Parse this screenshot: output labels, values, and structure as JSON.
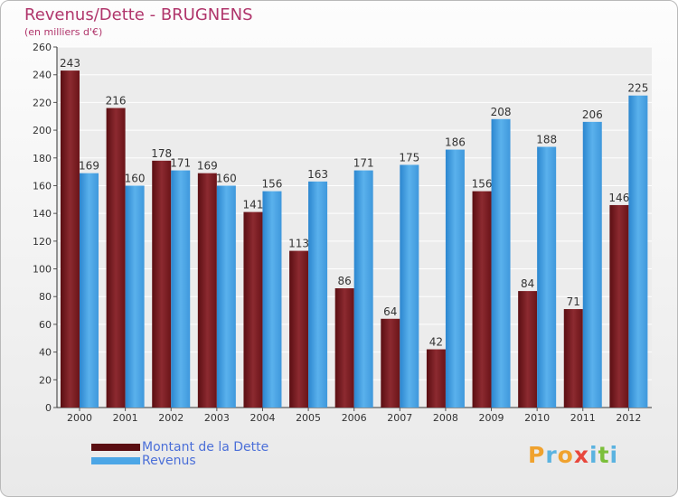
{
  "title": "Revenus/Dette - BRUGNENS",
  "subtitle": "(en milliers d'€)",
  "logo": {
    "text": "Proxiti",
    "colors": [
      "#f0a22e",
      "#5bb3e0",
      "#f0a22e",
      "#e8473c",
      "#5bb3e0",
      "#7bbf3a",
      "#5bb3e0"
    ]
  },
  "colors": {
    "debt": "#7a1e22",
    "revenue": "#4ca6e6",
    "title": "#b0356b",
    "legend": "#4b6fd8"
  },
  "chart_data": {
    "type": "bar",
    "categories": [
      "2000",
      "2001",
      "2002",
      "2003",
      "2004",
      "2005",
      "2006",
      "2007",
      "2008",
      "2009",
      "2010",
      "2011",
      "2012"
    ],
    "series": [
      {
        "name": "Montant de la Dette",
        "values": [
          243,
          216,
          178,
          169,
          141,
          113,
          86,
          64,
          42,
          156,
          84,
          71,
          146
        ]
      },
      {
        "name": "Revenus",
        "values": [
          169,
          160,
          171,
          160,
          156,
          163,
          171,
          175,
          186,
          208,
          188,
          206,
          225
        ]
      }
    ],
    "yticks": [
      "0",
      "20",
      "40",
      "60",
      "80",
      "100",
      "120",
      "140",
      "160",
      "180",
      "200",
      "220",
      "240",
      "260"
    ],
    "ylim": [
      0,
      260
    ],
    "grid": true,
    "legend_position": "bottom-left"
  }
}
